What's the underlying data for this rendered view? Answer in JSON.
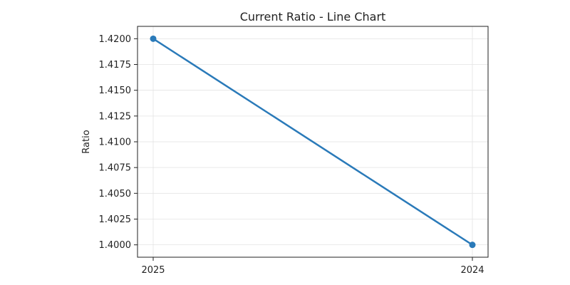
{
  "chart_data": {
    "type": "line",
    "title": "Current Ratio - Line Chart",
    "xlabel": "",
    "ylabel": "Ratio",
    "categories": [
      "2025",
      "2024"
    ],
    "series": [
      {
        "values": [
          1.42,
          1.4
        ],
        "color": "#2a7ab9"
      }
    ],
    "ylim": [
      1.3988,
      1.4212
    ],
    "y_ticks": [
      1.4,
      1.4025,
      1.405,
      1.4075,
      1.41,
      1.4125,
      1.415,
      1.4175,
      1.42
    ],
    "y_tick_labels": [
      "1.4000",
      "1.4025",
      "1.4050",
      "1.4075",
      "1.4100",
      "1.4125",
      "1.4150",
      "1.4175",
      "1.4200"
    ],
    "grid": true,
    "markers": true
  }
}
